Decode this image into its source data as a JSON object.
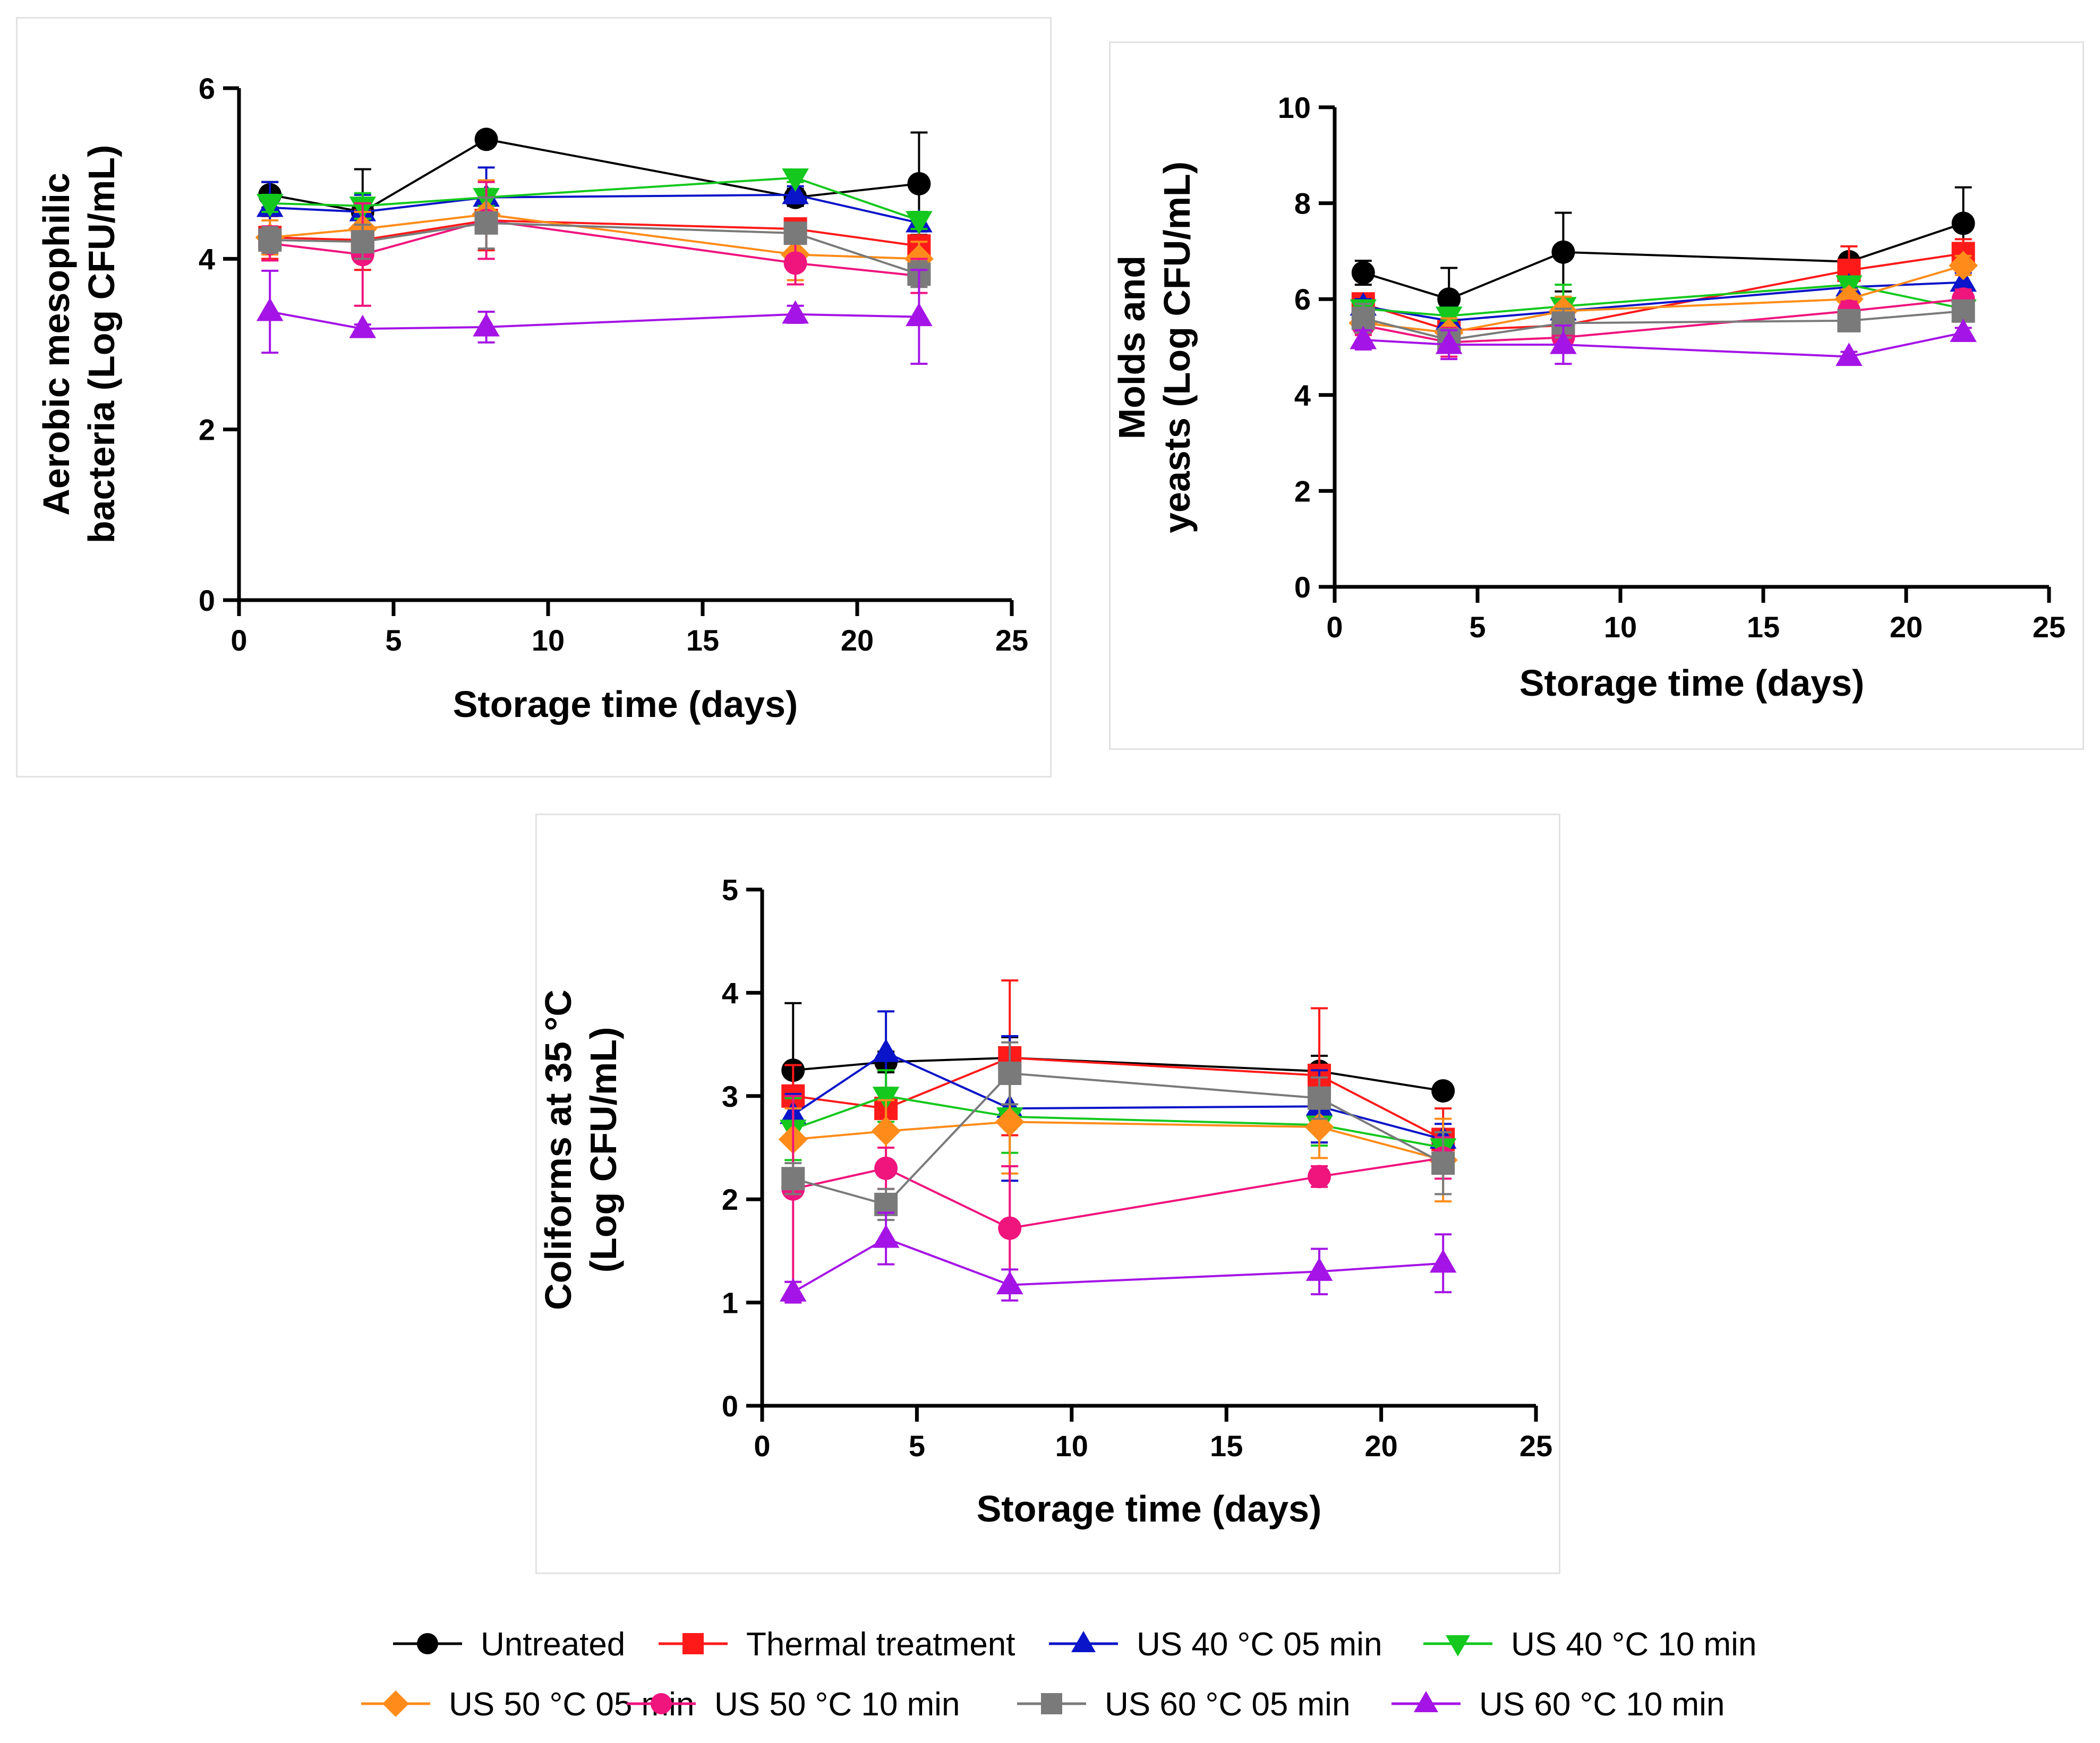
{
  "legend": [
    {
      "name": "Untreated",
      "color": "#000000",
      "marker": "circle"
    },
    {
      "name": "Thermal treatment",
      "color": "#ff1a1a",
      "marker": "square"
    },
    {
      "name": "US 40 °C 05 min",
      "color": "#0a14c8",
      "marker": "triangle-up"
    },
    {
      "name": "US 40 °C 10 min",
      "color": "#14c81e",
      "marker": "triangle-down"
    },
    {
      "name": "US 50 °C 05 min",
      "color": "#ff8c1a",
      "marker": "diamond"
    },
    {
      "name": "US 50 °C 10 min",
      "color": "#f0147d",
      "marker": "circle"
    },
    {
      "name": "US 60 °C 05 min",
      "color": "#7a7a7a",
      "marker": "square"
    },
    {
      "name": "US 60 °C 10 min",
      "color": "#a514e6",
      "marker": "triangle-up"
    }
  ],
  "chart_data": [
    {
      "type": "line",
      "title": "",
      "xlabel": "Storage time (days)",
      "ylabel": [
        "Aerobic mesophilic",
        "bacteria (Log CFU/mL)"
      ],
      "xlim": [
        0,
        25
      ],
      "ylim": [
        0,
        6
      ],
      "xticks": [
        0,
        5,
        10,
        15,
        20,
        25
      ],
      "yticks": [
        0,
        2,
        4,
        6
      ],
      "x": [
        1,
        4,
        8,
        18,
        22
      ],
      "series": [
        {
          "name": "Untreated",
          "values": [
            4.75,
            4.55,
            5.4,
            4.72,
            4.88
          ],
          "err": [
            0.15,
            0.5,
            0,
            0.1,
            0.6
          ]
        },
        {
          "name": "Thermal treatment",
          "values": [
            4.25,
            4.22,
            4.45,
            4.35,
            4.15
          ],
          "err": [
            0.25,
            0.35,
            0.35,
            0.1,
            0.2
          ]
        },
        {
          "name": "US 40 °C 05 min",
          "values": [
            4.6,
            4.55,
            4.72,
            4.75,
            4.42
          ],
          "err": [
            0.3,
            0.2,
            0.35,
            0.1,
            0.1
          ]
        },
        {
          "name": "US 40 °C 10 min",
          "values": [
            4.65,
            4.62,
            4.72,
            4.95,
            4.45
          ],
          "err": [
            0.1,
            0.15,
            0.1,
            0.05,
            0.1
          ]
        },
        {
          "name": "US 50 °C 05 min",
          "values": [
            4.25,
            4.35,
            4.52,
            4.05,
            4.0
          ],
          "err": [
            0.2,
            0.2,
            0.4,
            0.3,
            0.2
          ]
        },
        {
          "name": "US 50 °C 10 min",
          "values": [
            4.18,
            4.05,
            4.45,
            3.95,
            3.8
          ],
          "err": [
            0.2,
            0.6,
            0.45,
            0.25,
            0.2
          ]
        },
        {
          "name": "US 60 °C 05 min",
          "values": [
            4.22,
            4.2,
            4.42,
            4.3,
            3.82
          ],
          "err": [
            0.15,
            0.2,
            0.3,
            0.1,
            0.15
          ]
        },
        {
          "name": "US 60 °C 10 min",
          "values": [
            3.38,
            3.18,
            3.2,
            3.35,
            3.32
          ],
          "err": [
            0.48,
            0.05,
            0.18,
            0.1,
            0.55
          ]
        }
      ]
    },
    {
      "type": "line",
      "title": "",
      "xlabel": "Storage time (days)",
      "ylabel": [
        "Molds and",
        "yeasts (Log CFU/mL)"
      ],
      "xlim": [
        0,
        25
      ],
      "ylim": [
        0,
        10
      ],
      "xticks": [
        0,
        5,
        10,
        15,
        20,
        25
      ],
      "yticks": [
        0,
        2,
        4,
        6,
        8,
        10
      ],
      "x": [
        1,
        4,
        8,
        18,
        22
      ],
      "series": [
        {
          "name": "Untreated",
          "values": [
            6.55,
            6.0,
            6.98,
            6.78,
            7.58
          ],
          "err": [
            0.25,
            0.65,
            0.82,
            0.15,
            0.75
          ]
        },
        {
          "name": "Thermal treatment",
          "values": [
            5.9,
            5.35,
            5.45,
            6.6,
            6.95
          ],
          "err": [
            0.2,
            0.2,
            0.3,
            0.5,
            0.3
          ]
        },
        {
          "name": "US 40 °C 05 min",
          "values": [
            5.85,
            5.55,
            5.75,
            6.25,
            6.35
          ],
          "err": [
            0.15,
            0.15,
            0.2,
            0.1,
            0.2
          ]
        },
        {
          "name": "US 40 °C 10 min",
          "values": [
            5.8,
            5.65,
            5.85,
            6.3,
            5.8
          ],
          "err": [
            0.1,
            0.1,
            0.45,
            0.1,
            0.2
          ]
        },
        {
          "name": "US 50 °C 05 min",
          "values": [
            5.5,
            5.3,
            5.75,
            6.0,
            6.7
          ],
          "err": [
            0.2,
            0.3,
            0.3,
            0.2,
            0.2
          ]
        },
        {
          "name": "US 50 °C 10 min",
          "values": [
            5.45,
            5.1,
            5.2,
            5.75,
            6.0
          ],
          "err": [
            0.2,
            0.3,
            0.3,
            0.2,
            0.2
          ]
        },
        {
          "name": "US 60 °C 05 min",
          "values": [
            5.6,
            5.15,
            5.5,
            5.55,
            5.75
          ],
          "err": [
            0.3,
            0.2,
            0.3,
            0.2,
            0.2
          ]
        },
        {
          "name": "US 60 °C 10 min",
          "values": [
            5.15,
            5.05,
            5.05,
            4.8,
            5.3
          ],
          "err": [
            0.2,
            0.3,
            0.4,
            0.1,
            0.1
          ]
        }
      ]
    },
    {
      "type": "line",
      "title": "",
      "xlabel": "Storage time (days)",
      "ylabel": [
        "Coliforms at 35 °C",
        "(Log CFU/mL)"
      ],
      "xlim": [
        0,
        25
      ],
      "ylim": [
        0,
        5
      ],
      "xticks": [
        0,
        5,
        10,
        15,
        20,
        25
      ],
      "yticks": [
        0,
        1,
        2,
        3,
        4,
        5
      ],
      "x": [
        1,
        4,
        8,
        18,
        22
      ],
      "series": [
        {
          "name": "Untreated",
          "values": [
            3.25,
            3.33,
            3.37,
            3.24,
            3.05
          ],
          "err": [
            0.65,
            0.1,
            0.2,
            0.15,
            0.05
          ]
        },
        {
          "name": "Thermal treatment",
          "values": [
            3.0,
            2.88,
            3.37,
            3.2,
            2.58
          ],
          "err": [
            0.3,
            0.2,
            0.75,
            0.65,
            0.3
          ]
        },
        {
          "name": "US 40 °C 05 min",
          "values": [
            2.82,
            3.42,
            2.88,
            2.9,
            2.58
          ],
          "err": [
            0.2,
            0.4,
            0.7,
            0.35,
            0.15
          ]
        },
        {
          "name": "US 40 °C 10 min",
          "values": [
            2.68,
            3.0,
            2.8,
            2.72,
            2.5
          ],
          "err": [
            0.3,
            0.25,
            0.35,
            0.2,
            0.15
          ]
        },
        {
          "name": "US 50 °C 05 min",
          "values": [
            2.58,
            2.66,
            2.75,
            2.7,
            2.38
          ],
          "err": [
            0.3,
            0.3,
            0.5,
            0.3,
            0.4
          ]
        },
        {
          "name": "US 50 °C 10 min",
          "values": [
            2.1,
            2.3,
            1.72,
            2.22,
            2.4
          ],
          "err": [
            0.9,
            0.2,
            0.6,
            0.1,
            0.2
          ]
        },
        {
          "name": "US 60 °C 05 min",
          "values": [
            2.2,
            1.95,
            3.22,
            2.98,
            2.35
          ],
          "err": [
            0.15,
            0.15,
            0.3,
            0.2,
            0.3
          ]
        },
        {
          "name": "US 60 °C 10 min",
          "values": [
            1.1,
            1.62,
            1.17,
            1.3,
            1.38
          ],
          "err": [
            0.1,
            0.25,
            0.15,
            0.22,
            0.28
          ]
        }
      ]
    }
  ]
}
